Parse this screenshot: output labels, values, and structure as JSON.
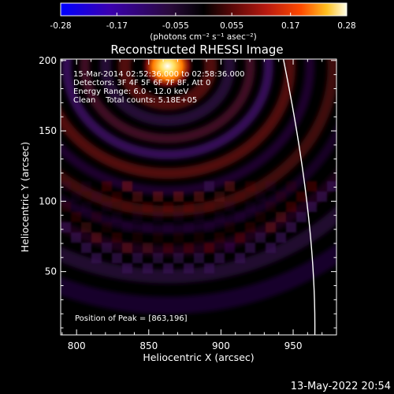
{
  "chart_data": {
    "type": "heatmap",
    "title": "Reconstructed RHESSI Image",
    "xlabel": "Heliocentric X (arcsec)",
    "ylabel": "Heliocentric Y (arcsec)",
    "xlim": [
      789,
      980
    ],
    "ylim": [
      5,
      201
    ],
    "x_ticks": [
      800,
      850,
      900,
      950
    ],
    "y_ticks": [
      50,
      100,
      150,
      200
    ],
    "colorbar": {
      "range": [
        -0.28,
        0.28
      ],
      "ticks": [
        "-0.28",
        "-0.17",
        "-0.055",
        "0.055",
        "0.17",
        "0.28"
      ],
      "unit_label": "(photons cm⁻² s⁻¹ asec⁻²)"
    },
    "peak": [
      863,
      196
    ],
    "limb_x_at_top": 943,
    "limb_x_at_bottom": 965,
    "annotations": {
      "time_range": "15-Mar-2014 02:52:36.000 to 02:58:36.000",
      "detectors": "Detectors: 3F 4F 5F 6F 7F 8F, Att 0",
      "energy_range": "Energy Range: 6.0 - 12.0 keV",
      "clean_counts": "Clean    Total counts: 5.18E+05",
      "peak_position": "Position of Peak = [863,196]"
    },
    "colors": {
      "background": "#000000",
      "axes": "#ffffff",
      "colormap": [
        "#0000ff",
        "#3a00b0",
        "#2a0a3c",
        "#000000",
        "#5a0808",
        "#b81a10",
        "#ff4a00",
        "#ffc020",
        "#ffffe8"
      ]
    }
  },
  "footer": {
    "date": "13-May-2022 20:54"
  }
}
